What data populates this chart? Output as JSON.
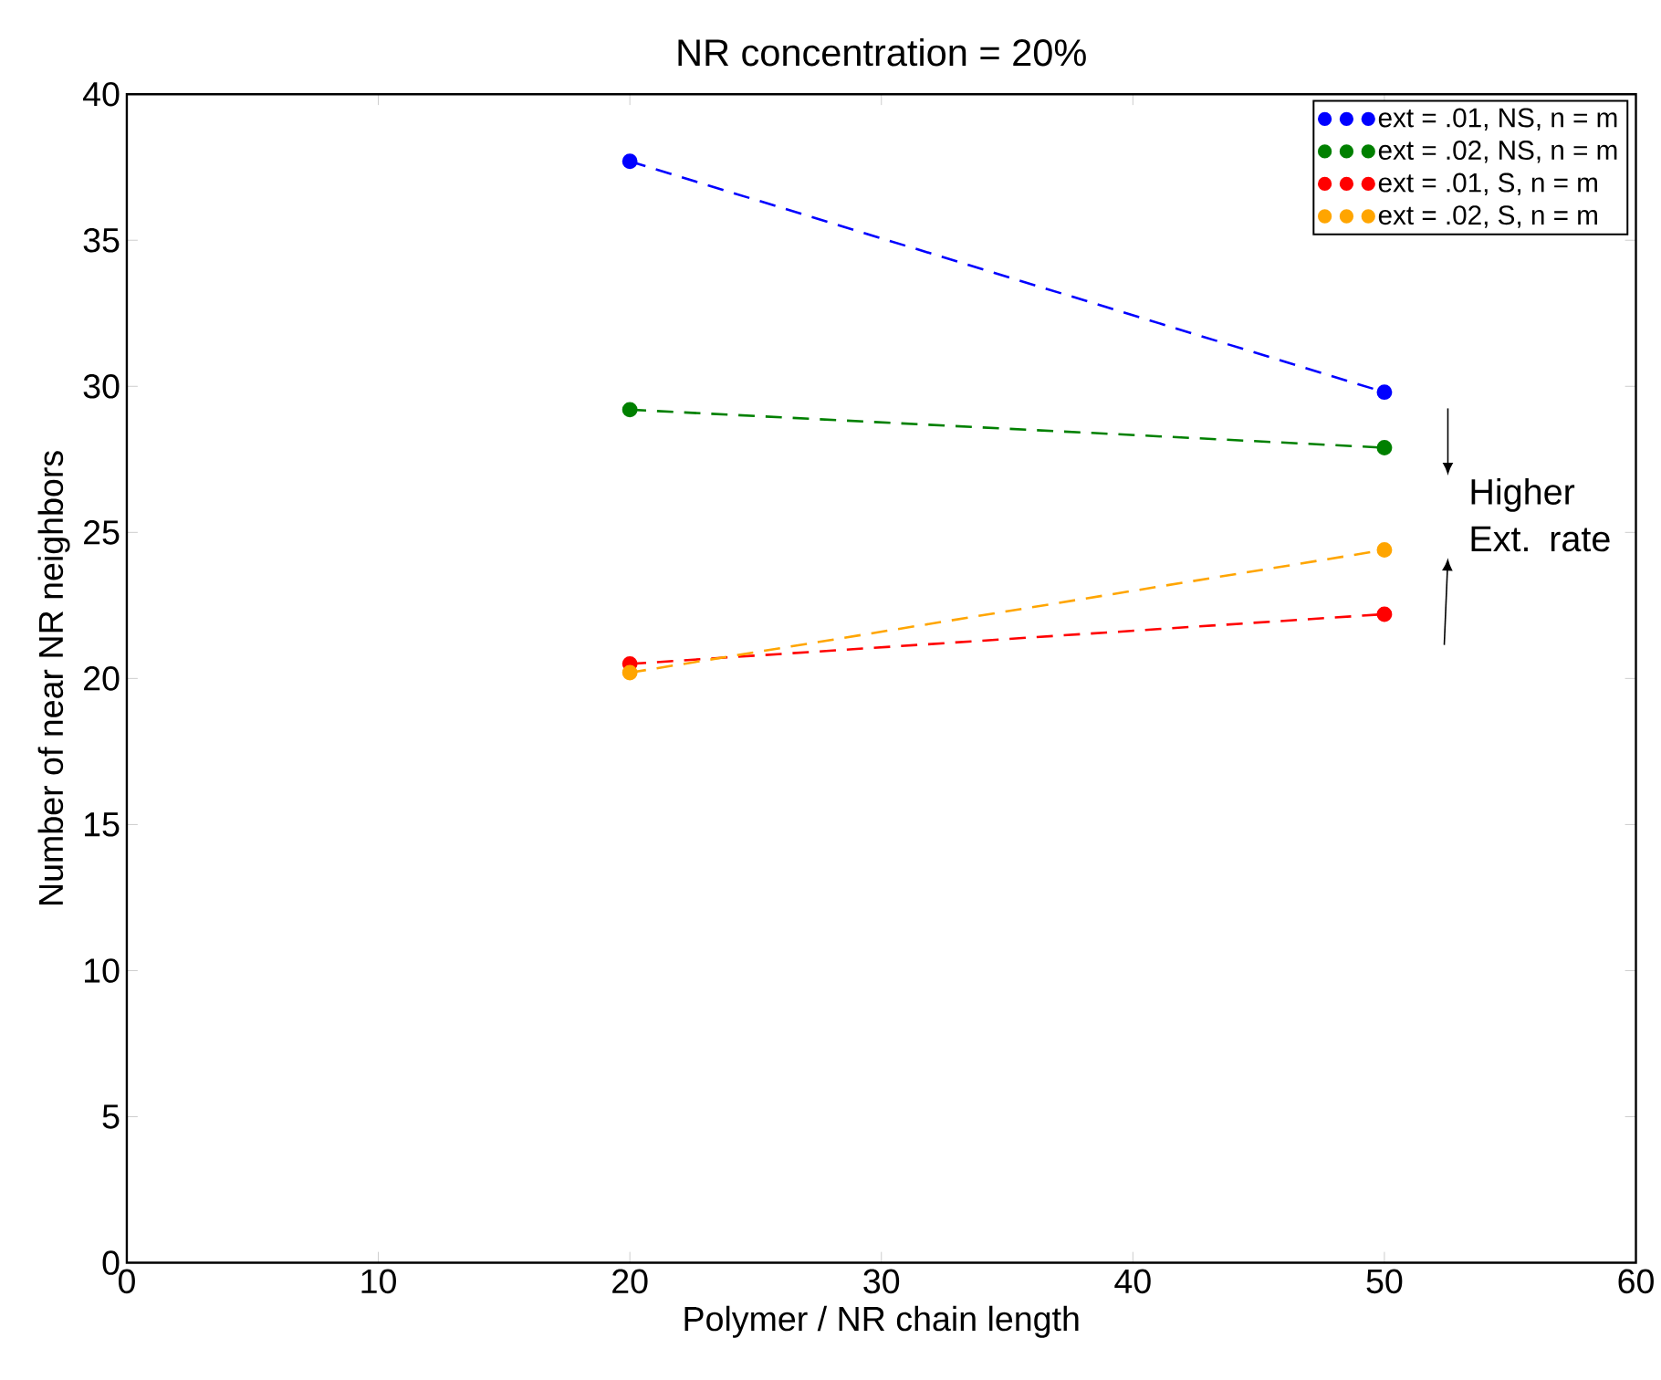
{
  "chart_data": {
    "type": "line",
    "title": "NR concentration = 20%",
    "xlabel": "Polymer  /  NR chain length",
    "ylabel": "Number of near NR neighbors",
    "x": [
      20,
      50
    ],
    "series": [
      {
        "name": "ext = .01, NS, n = m",
        "color": "#0000ff",
        "values": [
          37.7,
          29.8
        ]
      },
      {
        "name": "ext = .02, NS, n = m",
        "color": "#008000",
        "values": [
          29.2,
          27.9
        ]
      },
      {
        "name": "ext = .01, S, n = m",
        "color": "#ff0000",
        "values": [
          20.5,
          22.2
        ]
      },
      {
        "name": "ext = .02, S, n = m",
        "color": "#ffa500",
        "values": [
          20.2,
          24.4
        ]
      }
    ],
    "xlim": [
      0,
      60
    ],
    "ylim": [
      0,
      40
    ],
    "xticks": [
      0,
      10,
      20,
      30,
      40,
      50,
      60
    ],
    "yticks": [
      0,
      5,
      10,
      15,
      20,
      25,
      30,
      35,
      40
    ],
    "annotations": [
      "Higher Ext. rate"
    ],
    "legend": "top right",
    "grid": false,
    "marker": "circle",
    "line_style": "dashed"
  }
}
